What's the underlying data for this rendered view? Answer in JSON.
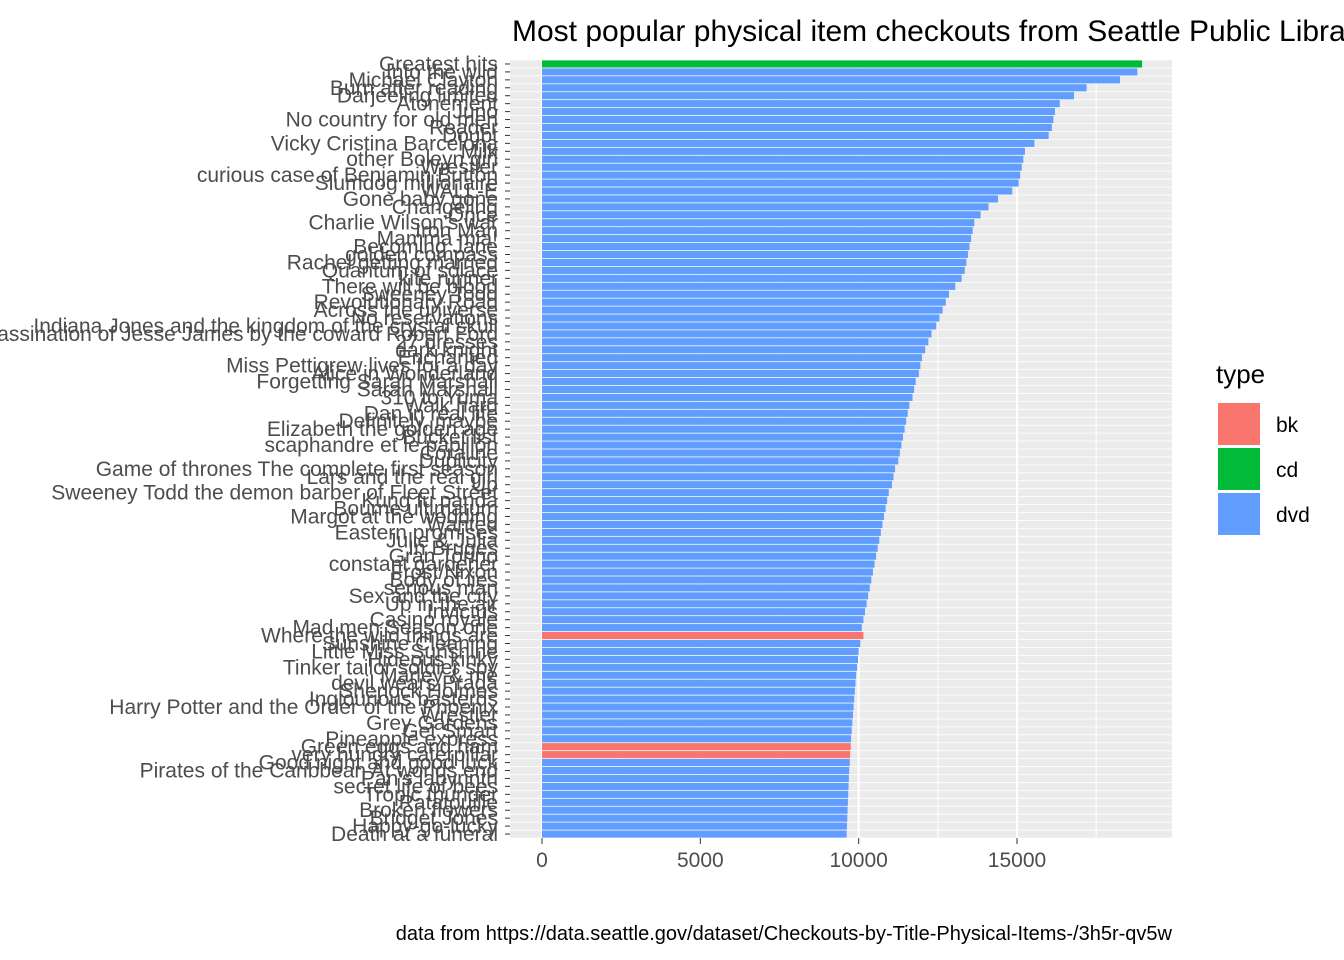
{
  "chart_data": {
    "type": "bar",
    "orientation": "horizontal",
    "title": "Most popular physical item checkouts from Seattle Public Library",
    "caption": "data from https://data.seattle.gov/dataset/Checkouts-by-Title-Physical-Items-/3h5r-qv5w",
    "xlabel": "",
    "ylabel": "",
    "xlim": [
      0,
      19900
    ],
    "xticks": [
      0,
      5000,
      10000,
      15000
    ],
    "grid": true,
    "legend": {
      "title": "type",
      "position": "right",
      "entries": [
        {
          "key": "bk",
          "label": "bk",
          "color": "#F8766D"
        },
        {
          "key": "cd",
          "label": "cd",
          "color": "#00BA38"
        },
        {
          "key": "dvd",
          "label": "dvd",
          "color": "#619CFF"
        }
      ]
    },
    "bars": [
      {
        "label": "Greatest hits",
        "value": 18950,
        "type": "cd"
      },
      {
        "label": "Into the wild",
        "value": 18800,
        "type": "dvd"
      },
      {
        "label": "Michael Clayton",
        "value": 18250,
        "type": "dvd"
      },
      {
        "label": "Burn after reading",
        "value": 17200,
        "type": "dvd"
      },
      {
        "label": "Darjeeling limited",
        "value": 16800,
        "type": "dvd"
      },
      {
        "label": "Atonement",
        "value": 16350,
        "type": "dvd"
      },
      {
        "label": "Juno",
        "value": 16200,
        "type": "dvd"
      },
      {
        "label": "No country for old men",
        "value": 16150,
        "type": "dvd"
      },
      {
        "label": "Reader",
        "value": 16100,
        "type": "dvd"
      },
      {
        "label": "Doubt",
        "value": 16000,
        "type": "dvd"
      },
      {
        "label": "Vicky Cristina Barcelona",
        "value": 15550,
        "type": "dvd"
      },
      {
        "label": "Milk",
        "value": 15250,
        "type": "dvd"
      },
      {
        "label": "other Boleyn girl",
        "value": 15200,
        "type": "dvd"
      },
      {
        "label": "Wrestler",
        "value": 15150,
        "type": "dvd"
      },
      {
        "label": "curious case of Benjamin Button",
        "value": 15100,
        "type": "dvd"
      },
      {
        "label": "Slumdog millionaire",
        "value": 15050,
        "type": "dvd"
      },
      {
        "label": "WALL-E",
        "value": 14850,
        "type": "dvd"
      },
      {
        "label": "Gone baby gone",
        "value": 14400,
        "type": "dvd"
      },
      {
        "label": "Changeling",
        "value": 14100,
        "type": "dvd"
      },
      {
        "label": "Once",
        "value": 13850,
        "type": "dvd"
      },
      {
        "label": "Charlie Wilson's war",
        "value": 13650,
        "type": "dvd"
      },
      {
        "label": "Iron Man",
        "value": 13600,
        "type": "dvd"
      },
      {
        "label": "Mamma mia!",
        "value": 13550,
        "type": "dvd"
      },
      {
        "label": "Becoming Jane",
        "value": 13500,
        "type": "dvd"
      },
      {
        "label": "golden compass",
        "value": 13450,
        "type": "dvd"
      },
      {
        "label": "Rachel getting married",
        "value": 13400,
        "type": "dvd"
      },
      {
        "label": "Quantum of solace",
        "value": 13350,
        "type": "dvd"
      },
      {
        "label": "kite runner",
        "value": 13250,
        "type": "dvd"
      },
      {
        "label": "There will be blood",
        "value": 13050,
        "type": "dvd"
      },
      {
        "label": "Sweeney Todd",
        "value": 12850,
        "type": "dvd"
      },
      {
        "label": "Revolutionary Road",
        "value": 12750,
        "type": "dvd"
      },
      {
        "label": "Across the universe",
        "value": 12650,
        "type": "dvd"
      },
      {
        "label": "No reservations",
        "value": 12550,
        "type": "dvd"
      },
      {
        "label": "Indiana Jones and the kingdom of the crystal skull",
        "value": 12450,
        "type": "dvd"
      },
      {
        "label": "assassination of Jesse James by the coward Robert Ford",
        "value": 12300,
        "type": "dvd"
      },
      {
        "label": "27 dresses",
        "value": 12200,
        "type": "dvd"
      },
      {
        "label": "dark knight",
        "value": 12100,
        "type": "dvd"
      },
      {
        "label": "Enchanted",
        "value": 12000,
        "type": "dvd"
      },
      {
        "label": "Miss Pettigrew lives for a day",
        "value": 11950,
        "type": "dvd"
      },
      {
        "label": "Alice in Wonderland",
        "value": 11900,
        "type": "dvd"
      },
      {
        "label": "Forgetting Sarah Marshall",
        "value": 11800,
        "type": "dvd"
      },
      {
        "label": "Sarah Marshall",
        "value": 11750,
        "type": "dvd"
      },
      {
        "label": "310 to Yuma",
        "value": 11700,
        "type": "dvd"
      },
      {
        "label": "Walk hard",
        "value": 11600,
        "type": "dvd"
      },
      {
        "label": "Dan in real life",
        "value": 11550,
        "type": "dvd"
      },
      {
        "label": "Definitely, maybe",
        "value": 11500,
        "type": "dvd"
      },
      {
        "label": "Elizabeth the golden age",
        "value": 11450,
        "type": "dvd"
      },
      {
        "label": "Bucket list",
        "value": 11400,
        "type": "dvd"
      },
      {
        "label": "scaphandre et le papillon",
        "value": 11350,
        "type": "dvd"
      },
      {
        "label": "Coraline",
        "value": 11300,
        "type": "dvd"
      },
      {
        "label": "Duplicity",
        "value": 11250,
        "type": "dvd"
      },
      {
        "label": "Game of thrones The complete first season",
        "value": 11150,
        "type": "dvd"
      },
      {
        "label": "Lars and the real girl",
        "value": 11100,
        "type": "dvd"
      },
      {
        "label": "Up",
        "value": 11050,
        "type": "dvd"
      },
      {
        "label": "Sweeney Todd the demon barber of Fleet Street",
        "value": 10950,
        "type": "dvd"
      },
      {
        "label": "Kung fu panda",
        "value": 10900,
        "type": "dvd"
      },
      {
        "label": "Bourne ultimatum",
        "value": 10850,
        "type": "dvd"
      },
      {
        "label": "Margot at the wedding",
        "value": 10800,
        "type": "dvd"
      },
      {
        "label": "Wanted",
        "value": 10750,
        "type": "dvd"
      },
      {
        "label": "Eastern promises",
        "value": 10700,
        "type": "dvd"
      },
      {
        "label": "Julie & Julia",
        "value": 10650,
        "type": "dvd"
      },
      {
        "label": "In Bruges",
        "value": 10600,
        "type": "dvd"
      },
      {
        "label": "Gran Torino",
        "value": 10550,
        "type": "dvd"
      },
      {
        "label": "constant gardener",
        "value": 10500,
        "type": "dvd"
      },
      {
        "label": "Frost/Nixon",
        "value": 10450,
        "type": "dvd"
      },
      {
        "label": "Body of lies",
        "value": 10400,
        "type": "dvd"
      },
      {
        "label": "serious man",
        "value": 10350,
        "type": "dvd"
      },
      {
        "label": "Sex and the city",
        "value": 10300,
        "type": "dvd"
      },
      {
        "label": "Up in the air",
        "value": 10250,
        "type": "dvd"
      },
      {
        "label": "Invictus",
        "value": 10200,
        "type": "dvd"
      },
      {
        "label": "Casino royale",
        "value": 10150,
        "type": "dvd"
      },
      {
        "label": "Mad men Season one",
        "value": 10100,
        "type": "dvd"
      },
      {
        "label": "Where the wild things are",
        "value": 10150,
        "type": "bk"
      },
      {
        "label": "Sunshine Cleaning",
        "value": 10050,
        "type": "dvd"
      },
      {
        "label": "Little Miss Sunshine",
        "value": 10000,
        "type": "dvd"
      },
      {
        "label": "Hideous kinky",
        "value": 9980,
        "type": "dvd"
      },
      {
        "label": "Tinker tailor soldier spy",
        "value": 9950,
        "type": "dvd"
      },
      {
        "label": "Marley & me",
        "value": 9920,
        "type": "dvd"
      },
      {
        "label": "devil wears Prada",
        "value": 9900,
        "type": "dvd"
      },
      {
        "label": "Sherlock Holmes",
        "value": 9880,
        "type": "dvd"
      },
      {
        "label": "Inglourious basterds",
        "value": 9860,
        "type": "dvd"
      },
      {
        "label": "Harry Potter and the Order of the Phoenix",
        "value": 9840,
        "type": "dvd"
      },
      {
        "label": "Wrestler",
        "value": 9820,
        "type": "dvd"
      },
      {
        "label": "Grey Gardens",
        "value": 9800,
        "type": "dvd"
      },
      {
        "label": "Get Smart",
        "value": 9780,
        "type": "dvd"
      },
      {
        "label": "Pineapple express",
        "value": 9760,
        "type": "dvd"
      },
      {
        "label": "Green eggs and ham",
        "value": 9750,
        "type": "bk"
      },
      {
        "label": "very hungry caterpillar",
        "value": 9730,
        "type": "bk"
      },
      {
        "label": "Good night and good luck",
        "value": 9720,
        "type": "dvd"
      },
      {
        "label": "Pirates of the Caribbean At worlds end",
        "value": 9700,
        "type": "dvd"
      },
      {
        "label": "Pan's labyrinth",
        "value": 9690,
        "type": "dvd"
      },
      {
        "label": "secret life of bees",
        "value": 9680,
        "type": "dvd"
      },
      {
        "label": "Tropic thunder",
        "value": 9670,
        "type": "dvd"
      },
      {
        "label": "Ratatouille",
        "value": 9660,
        "type": "dvd"
      },
      {
        "label": "Broken flowers",
        "value": 9650,
        "type": "dvd"
      },
      {
        "label": "Bridget Jones",
        "value": 9640,
        "type": "dvd"
      },
      {
        "label": "Happy-go-lucky",
        "value": 9630,
        "type": "dvd"
      },
      {
        "label": "Death at a funeral",
        "value": 9620,
        "type": "dvd"
      }
    ]
  }
}
